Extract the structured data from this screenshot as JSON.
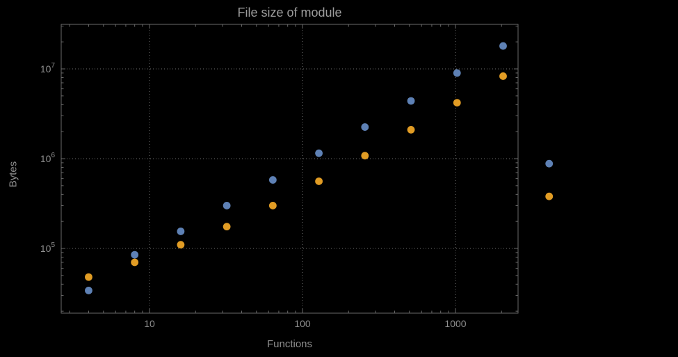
{
  "chart_data": {
    "type": "scatter",
    "title": "File size of module",
    "xlabel": "Functions",
    "ylabel": "Bytes",
    "x_scale": "log",
    "y_scale": "log",
    "grid": "dotted",
    "legend": "none",
    "background": "#000000",
    "frame_color": "#6a6a6a",
    "grid_color": "#6f6f6f",
    "label_color": "#8f8f8f",
    "x_tick_labels": [
      "10",
      "100",
      "1000"
    ],
    "x_tick_values": [
      10,
      100,
      1000
    ],
    "y_tick_base": "10",
    "y_tick_exponents": [
      5,
      6,
      7
    ],
    "x": [
      4,
      8,
      16,
      32,
      64,
      128,
      256,
      512,
      1024,
      2048,
      4096
    ],
    "series": [
      {
        "name": "series-blue",
        "color": "#5e81b5",
        "values": [
          34000,
          85000,
          155000,
          300000,
          580000,
          1150000,
          2250000,
          4400000,
          9000000,
          18000000,
          880000
        ]
      },
      {
        "name": "series-orange",
        "color": "#e19c24",
        "values": [
          48000,
          70000,
          110000,
          175000,
          300000,
          560000,
          1080000,
          2100000,
          4200000,
          8300000,
          380000
        ]
      }
    ]
  }
}
